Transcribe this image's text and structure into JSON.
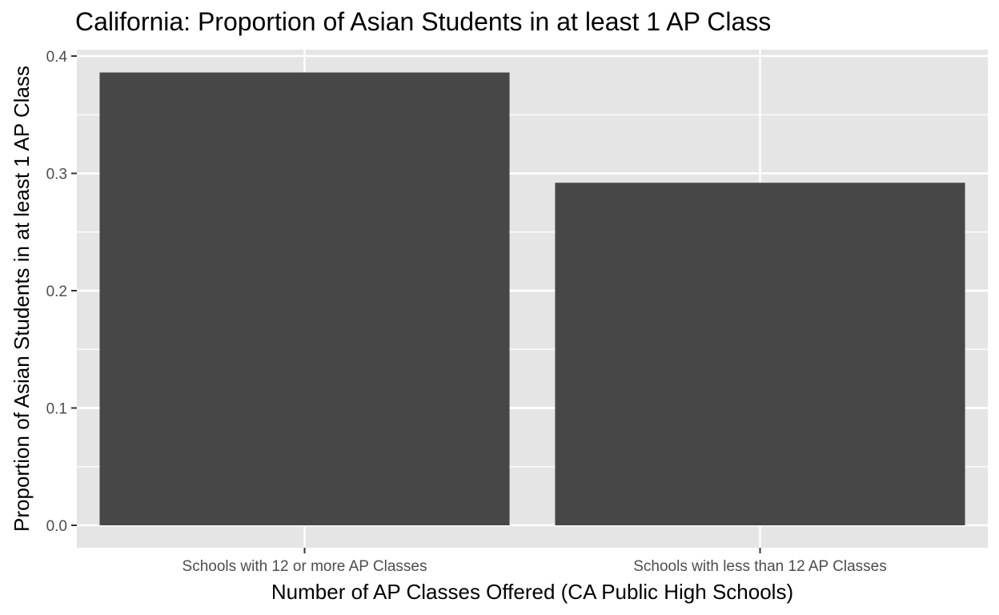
{
  "chart_data": {
    "type": "bar",
    "title": "California: Proportion of Asian Students in at least 1 AP Class",
    "xlabel": "Number of AP Classes Offered (CA Public High Schools)",
    "ylabel": "Proportion of Asian Students in at least 1 AP Class",
    "categories": [
      "Schools with 12 or more AP Classes",
      "Schools with less than 12 AP Classes"
    ],
    "values": [
      0.386,
      0.292
    ],
    "ylim": [
      0,
      0.4
    ],
    "yticks": [
      0.0,
      0.1,
      0.2,
      0.3,
      0.4
    ],
    "ytick_labels": [
      "0.0",
      "0.1",
      "0.2",
      "0.3",
      "0.4"
    ],
    "grid": true,
    "colors": {
      "bar": "#474747",
      "panel": "#e5e5e5",
      "grid": "#ffffff",
      "tick": "#333333"
    }
  }
}
